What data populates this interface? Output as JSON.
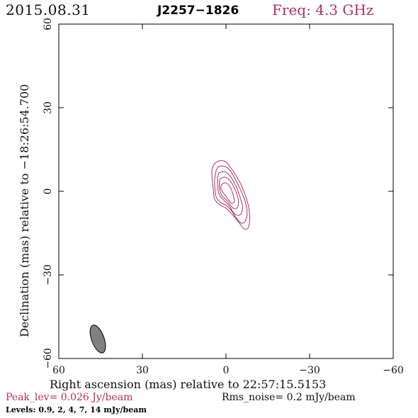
{
  "header": {
    "date": "2015.08.31",
    "source": "J2257−1826",
    "frequency": "Freq: 4.3 GHz"
  },
  "footer": {
    "peak": "Peak_lev=  0.026 Jy/beam",
    "rms": "Rms_noise=  0.2 mJy/beam",
    "levels": "Levels: 0.9,   2,   4,   7,  14 mJy/beam"
  },
  "colors": {
    "contour": "#b03060",
    "beam_fill": "#808080",
    "frame": "#000000"
  },
  "chart_data": {
    "type": "contour",
    "xlabel": "Right ascension (mas) relative to 22:57:15.5153",
    "ylabel": "Declination (mas) relative to −18:26:54.700",
    "xlim": [
      60,
      -60
    ],
    "ylim": [
      -60,
      60
    ],
    "x_ticks": [
      60,
      30,
      0,
      -30,
      -60
    ],
    "y_ticks": [
      -60,
      -30,
      0,
      30,
      60
    ],
    "x_tick_labels": [
      "60",
      "30",
      "0",
      "−30",
      "−60"
    ],
    "y_tick_labels": [
      "−60",
      "−30",
      "0",
      "30",
      "60"
    ],
    "contour_levels_mJy": [
      0.9,
      2,
      4,
      7,
      14
    ],
    "peak_Jy_per_beam": 0.026,
    "rms_mJy_per_beam": 0.2,
    "contours": [
      {
        "level": 0.9,
        "points": [
          [
            4,
            10
          ],
          [
            2,
            11
          ],
          [
            0,
            10.5
          ],
          [
            -2,
            8
          ],
          [
            -4,
            5
          ],
          [
            -6,
            1
          ],
          [
            -8,
            -5
          ],
          [
            -8.5,
            -10
          ],
          [
            -8,
            -13
          ],
          [
            -6.5,
            -13.5
          ],
          [
            -4.5,
            -11
          ],
          [
            -2,
            -8
          ],
          [
            0,
            -6
          ],
          [
            2,
            -5
          ],
          [
            4,
            -3
          ],
          [
            4.5,
            0
          ],
          [
            5,
            5
          ],
          [
            5,
            8
          ]
        ]
      },
      {
        "level": 2,
        "points": [
          [
            3,
            8.5
          ],
          [
            1,
            9
          ],
          [
            -1,
            8
          ],
          [
            -3,
            5
          ],
          [
            -5,
            1
          ],
          [
            -7,
            -4
          ],
          [
            -7.5,
            -9
          ],
          [
            -6,
            -11.5
          ],
          [
            -4,
            -10
          ],
          [
            -2,
            -7
          ],
          [
            0,
            -5
          ],
          [
            2,
            -4
          ],
          [
            3.5,
            -2
          ],
          [
            4,
            1
          ],
          [
            4,
            5
          ]
        ]
      },
      {
        "level": 4,
        "points": [
          [
            2.5,
            6.5
          ],
          [
            0.5,
            7
          ],
          [
            -1.5,
            5.5
          ],
          [
            -3.5,
            2
          ],
          [
            -5,
            -2
          ],
          [
            -6,
            -6
          ],
          [
            -5,
            -8.5
          ],
          [
            -3,
            -8
          ],
          [
            -1,
            -5
          ],
          [
            1,
            -3
          ],
          [
            2.5,
            -1
          ],
          [
            3,
            2
          ],
          [
            3,
            4.5
          ]
        ]
      },
      {
        "level": 7,
        "points": [
          [
            2,
            4.5
          ],
          [
            0,
            5
          ],
          [
            -2,
            3
          ],
          [
            -3.5,
            0
          ],
          [
            -4.5,
            -3.5
          ],
          [
            -4,
            -6
          ],
          [
            -2.5,
            -6
          ],
          [
            -0.5,
            -3.5
          ],
          [
            1.5,
            -1.5
          ],
          [
            2.3,
            1
          ],
          [
            2.4,
            3
          ]
        ]
      },
      {
        "level": 14,
        "points": [
          [
            1.5,
            2.5
          ],
          [
            0,
            3
          ],
          [
            -1.5,
            1.5
          ],
          [
            -2.5,
            -1
          ],
          [
            -3,
            -3.5
          ],
          [
            -2,
            -4.3
          ],
          [
            -0.5,
            -2.5
          ],
          [
            1,
            -0.5
          ],
          [
            1.8,
            1
          ]
        ]
      }
    ],
    "beam": {
      "center": [
        46,
        -53
      ],
      "major_mas": 10.5,
      "minor_mas": 4.5,
      "pa_deg": -20
    }
  }
}
